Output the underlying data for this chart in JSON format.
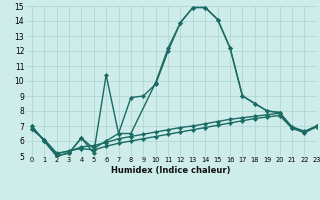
{
  "title": "",
  "xlabel": "Humidex (Indice chaleur)",
  "ylabel": "",
  "xlim": [
    -0.5,
    23
  ],
  "ylim": [
    5,
    15
  ],
  "yticks": [
    5,
    6,
    7,
    8,
    9,
    10,
    11,
    12,
    13,
    14,
    15
  ],
  "xticks": [
    0,
    1,
    2,
    3,
    4,
    5,
    6,
    7,
    8,
    9,
    10,
    11,
    12,
    13,
    14,
    15,
    16,
    17,
    18,
    19,
    20,
    21,
    22,
    23
  ],
  "xtick_labels": [
    "0",
    "1",
    "2",
    "3",
    "4",
    "5",
    "6",
    "7",
    "8",
    "9",
    "10",
    "11",
    "12",
    "13",
    "14",
    "15",
    "16",
    "17",
    "18",
    "19",
    "20",
    "21",
    "22",
    "23"
  ],
  "background_color": "#ceecea",
  "grid_color": "#aad4d0",
  "line_color": "#1a6b63",
  "line_width": 1.0,
  "marker": "D",
  "marker_size": 2.2,
  "line1": [
    7.0,
    6.0,
    5.0,
    5.2,
    6.2,
    5.2,
    10.4,
    6.5,
    6.5,
    9.9,
    12.2,
    13.9,
    14.9,
    14.9,
    14.1,
    12.2,
    9.0,
    8.5,
    8.0,
    7.9,
    6.9,
    6.6,
    7.0
  ],
  "line1_x": [
    0,
    1,
    2,
    3,
    4,
    5,
    6,
    7,
    8,
    10,
    11,
    12,
    13,
    14,
    15,
    16,
    17,
    18,
    19,
    20,
    21,
    22,
    23
  ],
  "line2": [
    7.0,
    6.0,
    5.0,
    5.2,
    6.2,
    5.5,
    6.0,
    6.5,
    8.9,
    9.0,
    9.8,
    12.0,
    13.9,
    14.9,
    14.9,
    14.1,
    12.2,
    9.0,
    8.5,
    8.0,
    7.9,
    6.9,
    6.6,
    7.0
  ],
  "line2_x": [
    0,
    1,
    2,
    3,
    4,
    5,
    6,
    7,
    8,
    9,
    10,
    11,
    12,
    13,
    14,
    15,
    16,
    17,
    18,
    19,
    20,
    21,
    22,
    23
  ],
  "line3": [
    6.8,
    6.1,
    5.2,
    5.3,
    5.6,
    5.7,
    5.9,
    6.15,
    6.3,
    6.45,
    6.6,
    6.75,
    6.9,
    7.0,
    7.15,
    7.3,
    7.45,
    7.55,
    7.65,
    7.75,
    7.85,
    6.95,
    6.65,
    7.0
  ],
  "line4": [
    6.8,
    6.1,
    5.15,
    5.35,
    5.5,
    5.4,
    5.65,
    5.85,
    6.0,
    6.15,
    6.3,
    6.45,
    6.6,
    6.75,
    6.9,
    7.05,
    7.2,
    7.35,
    7.5,
    7.6,
    7.7,
    6.85,
    6.55,
    6.95
  ]
}
